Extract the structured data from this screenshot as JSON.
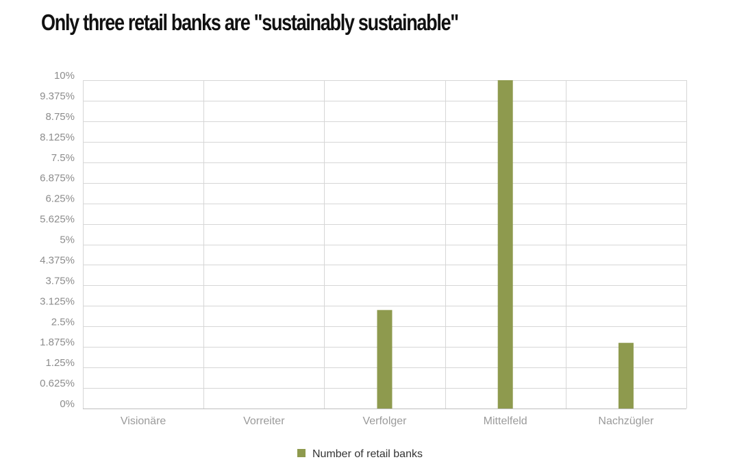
{
  "chart_data": {
    "type": "bar",
    "title": "Only three retail banks are \"sustainably sustainable\"",
    "categories": [
      "Visionäre",
      "Vorreiter",
      "Verfolger",
      "Mittelfeld",
      "Nachzügler"
    ],
    "series": [
      {
        "name": "Number of retail banks",
        "values": [
          0,
          0,
          3,
          10,
          2
        ],
        "color": "#8e9a4e"
      }
    ],
    "yticks": [
      "0%",
      "0.625%",
      "1.25%",
      "1.875%",
      "2.5%",
      "3.125%",
      "3.75%",
      "4.375%",
      "5%",
      "5.625%",
      "6.25%",
      "6.875%",
      "7.5%",
      "8.125%",
      "8.75%",
      "9.375%",
      "10%"
    ],
    "ylim": [
      0,
      10
    ],
    "xlabel": "",
    "ylabel": "",
    "grid": true,
    "legend": "bottom-center"
  }
}
